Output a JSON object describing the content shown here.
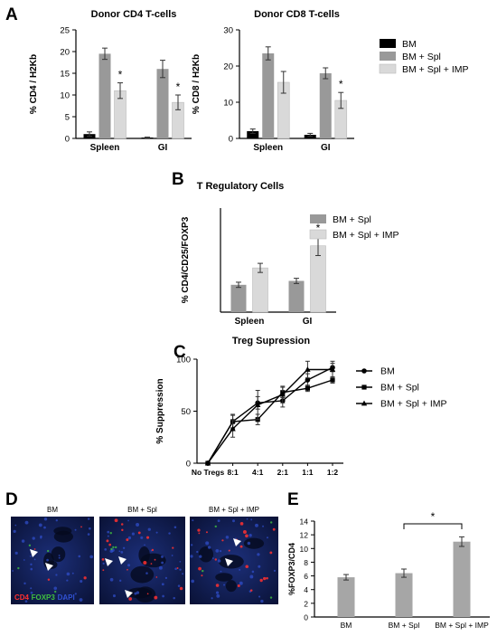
{
  "colors": {
    "bm": "#000000",
    "bm_spl": "#999999",
    "bm_spl_imp": "#d9d9d9",
    "panel_e_bar": "#a6a6a6",
    "cd4_stain": "#ff3030",
    "foxp3_stain": "#40c040",
    "dapi_stain": "#3050d0"
  },
  "panels": {
    "A": "A",
    "B": "B",
    "C": "C",
    "D": "D",
    "E": "E"
  },
  "legend_top": [
    "BM",
    "BM + Spl",
    "BM + Spl + IMP"
  ],
  "legend_b": [
    "BM + Spl",
    "BM + Spl + IMP"
  ],
  "legend_c": [
    "BM",
    "BM + Spl",
    "BM + Spl + IMP"
  ],
  "micro": {
    "titles": [
      "BM",
      "BM + Spl",
      "BM + Spl + IMP"
    ],
    "stain_labels": [
      "CD4",
      "FOXP3",
      "DAPI"
    ]
  },
  "chart_data": [
    {
      "id": "A1",
      "type": "bar",
      "title": "Donor CD4 T-cells",
      "ylabel": "% CD4 / H2Kb",
      "ylim": [
        0,
        25
      ],
      "yticks": [
        0,
        5,
        10,
        15,
        20,
        25
      ],
      "categories": [
        "Spleen",
        "GI"
      ],
      "series": [
        {
          "name": "BM",
          "values": [
            1.0,
            0.2
          ],
          "errors": [
            0.5,
            0.1
          ]
        },
        {
          "name": "BM + Spl",
          "values": [
            19.5,
            16.0
          ],
          "errors": [
            1.3,
            2.0
          ]
        },
        {
          "name": "BM + Spl + IMP",
          "values": [
            11.0,
            8.3
          ],
          "errors": [
            1.8,
            1.7
          ]
        }
      ],
      "annotations": [
        {
          "category": 0,
          "series": 2,
          "text": "*"
        },
        {
          "category": 1,
          "series": 2,
          "text": "*"
        }
      ]
    },
    {
      "id": "A2",
      "type": "bar",
      "title": "Donor CD8 T-cells",
      "ylabel": "% CD8 / H2Kb",
      "ylim": [
        0,
        30
      ],
      "yticks": [
        0,
        10,
        20,
        30
      ],
      "categories": [
        "Spleen",
        "GI"
      ],
      "series": [
        {
          "name": "BM",
          "values": [
            2.0,
            1.0
          ],
          "errors": [
            0.6,
            0.4
          ]
        },
        {
          "name": "BM + Spl",
          "values": [
            23.5,
            18.0
          ],
          "errors": [
            1.8,
            1.5
          ]
        },
        {
          "name": "BM + Spl + IMP",
          "values": [
            15.5,
            10.5
          ],
          "errors": [
            3.0,
            2.2
          ]
        }
      ],
      "annotations": [
        {
          "category": 1,
          "series": 2,
          "text": "*"
        }
      ]
    },
    {
      "id": "B",
      "type": "bar",
      "title": "T Regulatory Cells",
      "ylabel": "% CD4/CD25/FOXP3",
      "ylim": [
        0,
        8
      ],
      "categories": [
        "Spleen",
        "GI"
      ],
      "series": [
        {
          "name": "BM + Spl",
          "values": [
            2.1,
            2.4
          ],
          "errors": [
            0.2,
            0.2
          ]
        },
        {
          "name": "BM + Spl + IMP",
          "values": [
            3.4,
            5.1
          ],
          "errors": [
            0.35,
            0.75
          ]
        }
      ],
      "annotations": [
        {
          "category": 1,
          "series": 1,
          "text": "*"
        }
      ]
    },
    {
      "id": "C",
      "type": "line",
      "title": "Treg Supression",
      "ylabel": "% Suppression",
      "ylim": [
        0,
        100
      ],
      "yticks": [
        0,
        50,
        100
      ],
      "categories": [
        "No Tregs",
        "8:1",
        "4:1",
        "2:1",
        "1:1",
        "1:2"
      ],
      "series": [
        {
          "name": "BM",
          "marker": "circle",
          "values": [
            0,
            40,
            58,
            60,
            80,
            92
          ],
          "errors": [
            0,
            7,
            6,
            6,
            6,
            4
          ]
        },
        {
          "name": "BM + Spl",
          "marker": "square",
          "values": [
            0,
            40,
            42,
            68,
            72,
            80
          ],
          "errors": [
            0,
            6,
            5,
            5,
            3,
            3
          ]
        },
        {
          "name": "BM + Spl + IMP",
          "marker": "triangle",
          "values": [
            0,
            33,
            56,
            66,
            90,
            90
          ],
          "errors": [
            0,
            8,
            14,
            8,
            8,
            8
          ]
        }
      ]
    },
    {
      "id": "E",
      "type": "bar",
      "ylabel": "%FOXP3/CD4",
      "ylim": [
        0,
        14
      ],
      "yticks": [
        0,
        2,
        4,
        6,
        8,
        10,
        12,
        14
      ],
      "categories": [
        "BM",
        "BM + Spl",
        "BM + Spl + IMP"
      ],
      "values": [
        5.8,
        6.4,
        11.0
      ],
      "errors": [
        0.4,
        0.6,
        0.7
      ],
      "annotations": [
        {
          "from": 1,
          "to": 2,
          "text": "*"
        }
      ]
    }
  ]
}
